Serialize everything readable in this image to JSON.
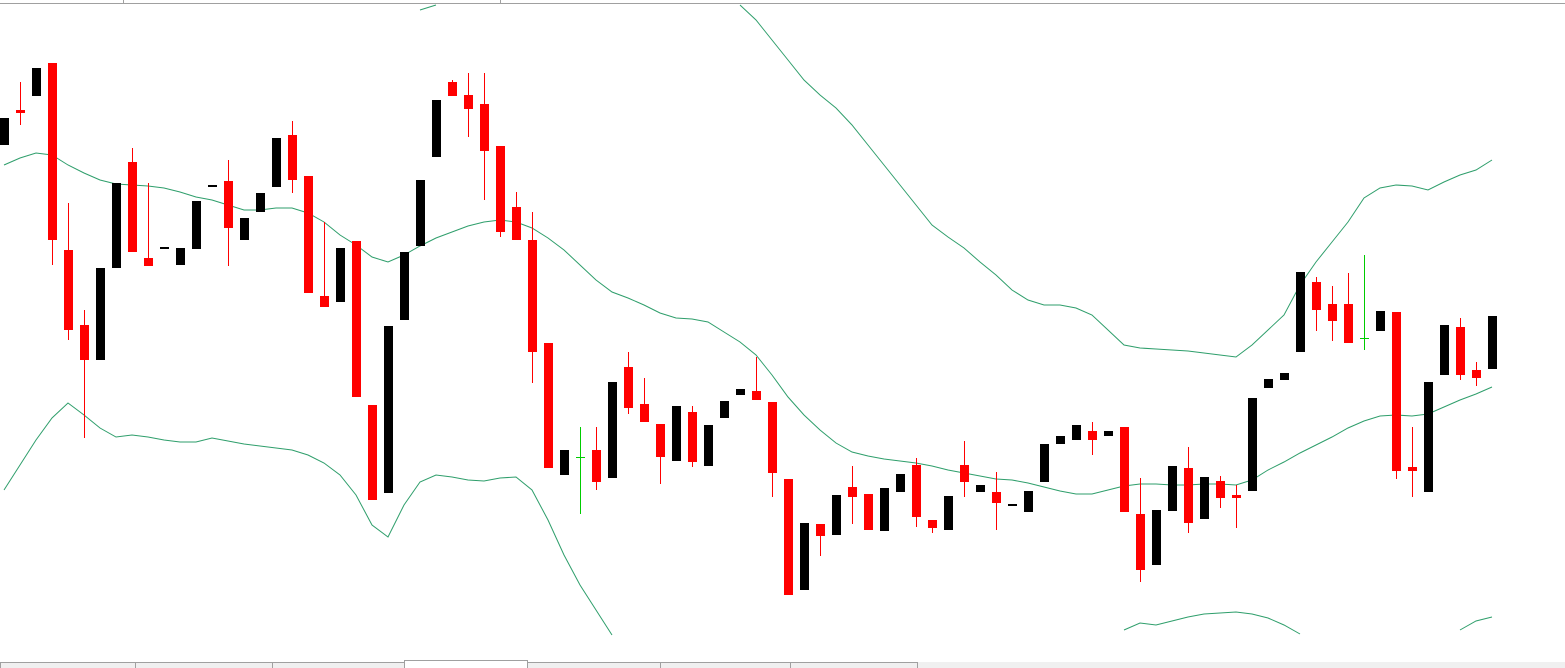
{
  "chart_data": {
    "type": "candlestick",
    "ylim": [
      0,
      668
    ],
    "up_color": "#000000",
    "down_color": "#ff0000",
    "doji_color": "#00cc00",
    "open": [
      523,
      558,
      572,
      605,
      418,
      343,
      308,
      400,
      506,
      410,
      419,
      403,
      419,
      481,
      487,
      428,
      456,
      481,
      533,
      492,
      372,
      366,
      427,
      263,
      175,
      348,
      422,
      511,
      586,
      573,
      564,
      522,
      461,
      428,
      325,
      193,
      211,
      218,
      190,
      301,
      264,
      244,
      207,
      256,
      202,
      250,
      273,
      277,
      266,
      189,
      78,
      144,
      133,
      181,
      174,
      137,
      176,
      203,
      148,
      138,
      203,
      176,
      176,
      162,
      156,
      186,
      224,
      228,
      237,
      232,
      241,
      154,
      103,
      157,
      200,
      149,
      187,
      173,
      177,
      280,
      288,
      316,
      386,
      364,
      364,
      330,
      337,
      356,
      201,
      176,
      293,
      341,
      298,
      299
    ],
    "high": [
      550,
      586,
      600,
      605,
      465,
      358,
      400,
      485,
      520,
      485,
      421,
      420,
      467,
      483,
      508,
      450,
      475,
      530,
      547,
      492,
      446,
      420,
      427,
      263,
      342,
      416,
      488,
      568,
      588,
      595,
      595,
      522,
      476,
      456,
      325,
      218,
      241,
      241,
      286,
      316,
      290,
      244,
      262,
      262,
      243,
      267,
      279,
      311,
      266,
      189,
      145,
      144,
      173,
      202,
      174,
      180,
      194,
      210,
      148,
      172,
      227,
      183,
      196,
      164,
      177,
      224,
      232,
      243,
      246,
      237,
      241,
      190,
      158,
      202,
      221,
      191,
      192,
      183,
      270,
      289,
      295,
      396,
      391,
      382,
      395,
      413,
      357,
      356,
      241,
      286,
      343,
      350,
      306,
      352
    ],
    "low": [
      523,
      543,
      572,
      403,
      328,
      230,
      308,
      400,
      416,
      402,
      419,
      403,
      419,
      481,
      402,
      428,
      456,
      481,
      475,
      375,
      361,
      366,
      271,
      168,
      175,
      348,
      422,
      511,
      572,
      531,
      468,
      431,
      428,
      285,
      200,
      193,
      154,
      178,
      190,
      254,
      246,
      184,
      207,
      201,
      202,
      250,
      273,
      268,
      171,
      73,
      78,
      112,
      133,
      144,
      138,
      137,
      176,
      141,
      135,
      138,
      171,
      176,
      138,
      162,
      156,
      186,
      224,
      228,
      213,
      232,
      156,
      86,
      103,
      157,
      135,
      149,
      160,
      140,
      177,
      280,
      288,
      316,
      337,
      327,
      325,
      318,
      337,
      189,
      171,
      176,
      293,
      288,
      282,
      299
    ],
    "close": [
      550,
      555,
      600,
      428,
      338,
      308,
      400,
      485,
      416,
      402,
      421,
      420,
      467,
      483,
      440,
      450,
      475,
      530,
      488,
      375,
      361,
      420,
      271,
      168,
      342,
      416,
      488,
      568,
      572,
      559,
      517,
      436,
      428,
      316,
      200,
      218,
      211,
      186,
      286,
      260,
      246,
      211,
      262,
      206,
      243,
      267,
      279,
      268,
      195,
      73,
      145,
      132,
      173,
      171,
      138,
      180,
      194,
      151,
      140,
      172,
      186,
      183,
      165,
      164,
      177,
      224,
      232,
      243,
      228,
      237,
      156,
      98,
      158,
      202,
      145,
      191,
      170,
      170,
      270,
      289,
      295,
      396,
      358,
      347,
      325,
      330,
      357,
      197,
      197,
      286,
      343,
      293,
      290,
      352
    ],
    "band_color": "#2e9e6b",
    "bands": [
      {
        "values": [
          null,
          null,
          null,
          null,
          null,
          null,
          null,
          null,
          null,
          null,
          null,
          null,
          null,
          null,
          null,
          null,
          null,
          null,
          null,
          null,
          null,
          null,
          null,
          null,
          null,
          null,
          658,
          663,
          null,
          null,
          null,
          null,
          null,
          null,
          null,
          null,
          null,
          null,
          null,
          null,
          null,
          null,
          null,
          null,
          null,
          null,
          663,
          648,
          628,
          608,
          588,
          573,
          560,
          543,
          523,
          503,
          483,
          463,
          443,
          431,
          420,
          406,
          393,
          378,
          368,
          363,
          363,
          360,
          353,
          338,
          323,
          320,
          319,
          318,
          317,
          315,
          313,
          311,
          323,
          338,
          353,
          383,
          406,
          426,
          446,
          470,
          480,
          483,
          482,
          478,
          486,
          493,
          498,
          508
        ]
      },
      {
        "values": [
          503,
          510,
          515,
          513,
          503,
          495,
          488,
          484,
          483,
          482,
          480,
          476,
          471,
          468,
          463,
          458,
          458,
          460,
          460,
          455,
          446,
          433,
          423,
          411,
          406,
          413,
          422,
          430,
          436,
          442,
          446,
          448,
          446,
          440,
          430,
          418,
          403,
          388,
          376,
          370,
          363,
          355,
          350,
          349,
          346,
          336,
          326,
          313,
          293,
          271,
          253,
          238,
          225,
          216,
          212,
          209,
          207,
          205,
          202,
          198,
          195,
          192,
          189,
          188,
          185,
          181,
          177,
          174,
          174,
          178,
          182,
          184,
          184,
          183,
          183,
          184,
          184,
          183,
          188,
          198,
          206,
          215,
          223,
          231,
          240,
          247,
          252,
          253,
          252,
          254,
          261,
          268,
          274,
          281
        ]
      },
      {
        "values": [
          178,
          203,
          228,
          250,
          265,
          253,
          240,
          231,
          233,
          231,
          228,
          226,
          226,
          230,
          227,
          224,
          222,
          220,
          218,
          213,
          205,
          193,
          173,
          143,
          131,
          163,
          186,
          193,
          191,
          188,
          187,
          190,
          191,
          178,
          148,
          113,
          83,
          58,
          33,
          null,
          null,
          null,
          null,
          null,
          null,
          null,
          null,
          null,
          null,
          null,
          null,
          null,
          null,
          null,
          null,
          null,
          null,
          null,
          null,
          null,
          null,
          null,
          null,
          null,
          null,
          null,
          null,
          null,
          null,
          null,
          38,
          45,
          43,
          47,
          51,
          54,
          55,
          56,
          54,
          50,
          43,
          34,
          null,
          null,
          null,
          null,
          null,
          null,
          null,
          null,
          null,
          38,
          47,
          51
        ]
      }
    ]
  }
}
